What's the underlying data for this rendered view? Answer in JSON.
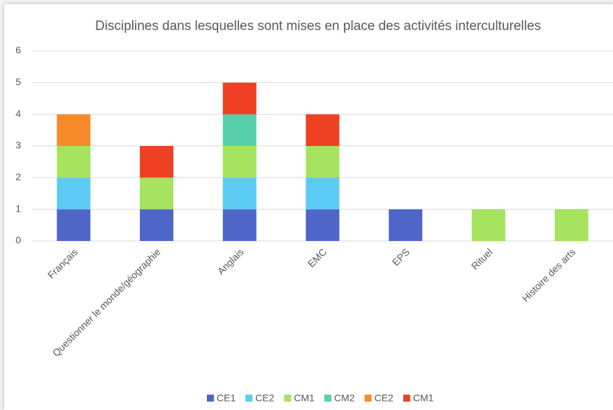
{
  "chart_data": {
    "type": "stacked_bar",
    "title": "Disciplines dans lesquelles sont mises en place des activités interculturelles",
    "categories": [
      "Français",
      "Questionner le monde/géographie",
      "Anglais",
      "EMC",
      "EPS",
      "Rituel",
      "Histoire des arts"
    ],
    "series": [
      {
        "name": "CE1",
        "color": "#4f66c9",
        "values": [
          1,
          1,
          1,
          1,
          1,
          0,
          0
        ]
      },
      {
        "name": "CE2",
        "color": "#5ccbf4",
        "values": [
          1,
          0,
          1,
          1,
          0,
          0,
          0
        ]
      },
      {
        "name": "CM1",
        "color": "#a6e35e",
        "values": [
          1,
          1,
          1,
          1,
          0,
          1,
          1
        ]
      },
      {
        "name": "CM2",
        "color": "#58d0aa",
        "values": [
          0,
          0,
          1,
          0,
          0,
          0,
          0
        ]
      },
      {
        "name": "CE2",
        "color": "#f78a2b",
        "values": [
          1,
          0,
          0,
          0,
          0,
          0,
          0
        ]
      },
      {
        "name": "CM1",
        "color": "#ee4124",
        "values": [
          0,
          1,
          1,
          1,
          0,
          0,
          0
        ]
      }
    ],
    "ylim": [
      0,
      6
    ],
    "yticks": [
      0,
      1,
      2,
      3,
      4,
      5,
      6
    ],
    "grid": true,
    "legend": "bottom"
  }
}
